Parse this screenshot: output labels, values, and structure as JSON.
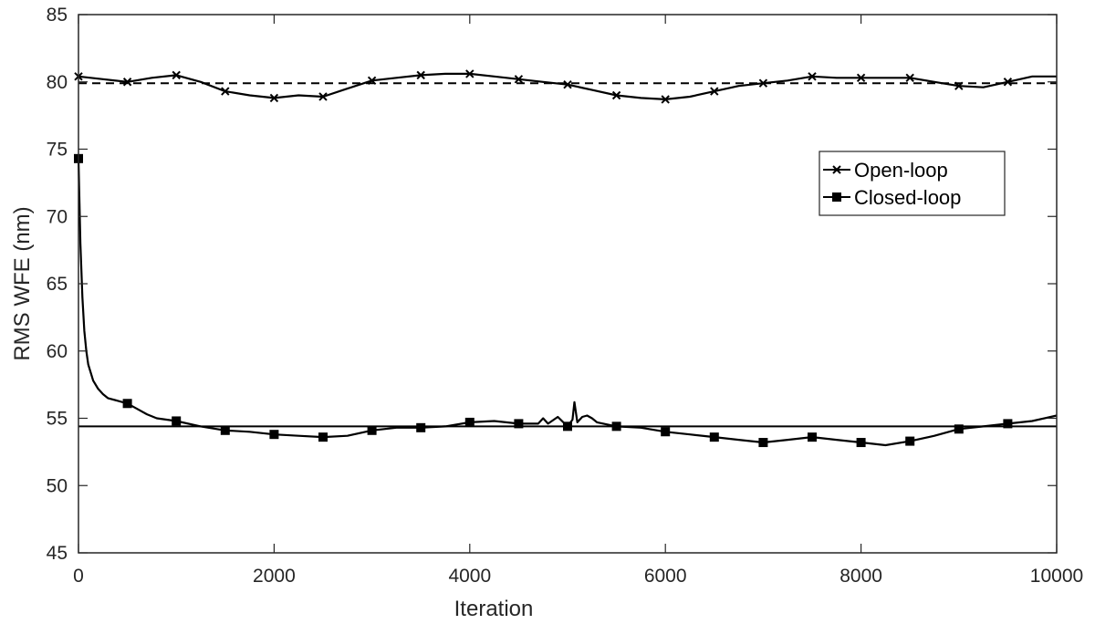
{
  "chart_data": {
    "type": "line",
    "title": "",
    "xlabel": "Iteration",
    "ylabel": "RMS WFE (nm)",
    "xlim": [
      0,
      10000
    ],
    "ylim": [
      45,
      85
    ],
    "x_ticks": [
      0,
      2000,
      4000,
      6000,
      8000,
      10000
    ],
    "y_ticks": [
      45,
      50,
      55,
      60,
      65,
      70,
      75,
      80,
      85
    ],
    "grid": false,
    "legend_position": "right",
    "colors": {
      "line": "#000000",
      "axis": "#262626"
    },
    "series": [
      {
        "name": "Open-loop",
        "marker": "x",
        "x": [
          0,
          250,
          500,
          750,
          1000,
          1250,
          1500,
          1750,
          2000,
          2250,
          2500,
          2750,
          3000,
          3250,
          3500,
          3750,
          4000,
          4250,
          4500,
          4750,
          5000,
          5250,
          5500,
          5750,
          6000,
          6250,
          6500,
          6750,
          7000,
          7250,
          7500,
          7750,
          8000,
          8250,
          8500,
          8750,
          9000,
          9250,
          9500,
          9750,
          10000
        ],
        "values": [
          80.4,
          80.2,
          80.0,
          80.3,
          80.5,
          80.0,
          79.3,
          79.0,
          78.8,
          79.0,
          78.9,
          79.5,
          80.1,
          80.3,
          80.5,
          80.6,
          80.6,
          80.4,
          80.2,
          80.0,
          79.8,
          79.4,
          79.0,
          78.8,
          78.7,
          78.9,
          79.3,
          79.7,
          79.9,
          80.1,
          80.4,
          80.3,
          80.3,
          80.3,
          80.3,
          80.0,
          79.7,
          79.6,
          80.0,
          80.4,
          80.4
        ],
        "marker_x": [
          0,
          500,
          1000,
          1500,
          2000,
          2500,
          3000,
          3500,
          4000,
          4500,
          5000,
          5500,
          6000,
          6500,
          7000,
          7500,
          8000,
          8500,
          9000,
          9500
        ]
      },
      {
        "name": "Closed-loop",
        "marker": "square",
        "x": [
          0,
          10,
          20,
          40,
          60,
          80,
          100,
          150,
          200,
          250,
          300,
          400,
          500,
          600,
          700,
          800,
          900,
          1000,
          1250,
          1500,
          1750,
          2000,
          2250,
          2500,
          2750,
          3000,
          3250,
          3500,
          3750,
          4000,
          4250,
          4500,
          4700,
          4750,
          4800,
          4900,
          5000,
          5050,
          5070,
          5100,
          5150,
          5200,
          5250,
          5300,
          5500,
          5750,
          6000,
          6250,
          6500,
          6750,
          7000,
          7250,
          7500,
          7750,
          8000,
          8250,
          8500,
          8750,
          9000,
          9250,
          9500,
          9750,
          10000
        ],
        "values": [
          74.3,
          71.0,
          68.0,
          64.0,
          61.5,
          60.0,
          59.0,
          57.8,
          57.2,
          56.8,
          56.5,
          56.3,
          56.1,
          55.7,
          55.3,
          55.0,
          54.9,
          54.8,
          54.4,
          54.1,
          54.0,
          53.8,
          53.7,
          53.6,
          53.7,
          54.1,
          54.3,
          54.3,
          54.4,
          54.7,
          54.8,
          54.6,
          54.6,
          55.0,
          54.6,
          55.1,
          54.4,
          54.9,
          56.2,
          54.7,
          55.1,
          55.2,
          55.0,
          54.7,
          54.4,
          54.3,
          54.0,
          53.8,
          53.6,
          53.4,
          53.2,
          53.4,
          53.6,
          53.4,
          53.2,
          53.0,
          53.3,
          53.7,
          54.2,
          54.4,
          54.6,
          54.8,
          55.2
        ],
        "marker_x": [
          0,
          500,
          1000,
          1500,
          2000,
          2500,
          3000,
          3500,
          4000,
          4500,
          5000,
          5500,
          6000,
          6500,
          7000,
          7500,
          8000,
          8500,
          9000,
          9500
        ]
      }
    ],
    "reference_lines": [
      {
        "y": 79.9,
        "style": "dashed"
      },
      {
        "y": 54.4,
        "style": "solid"
      }
    ]
  }
}
